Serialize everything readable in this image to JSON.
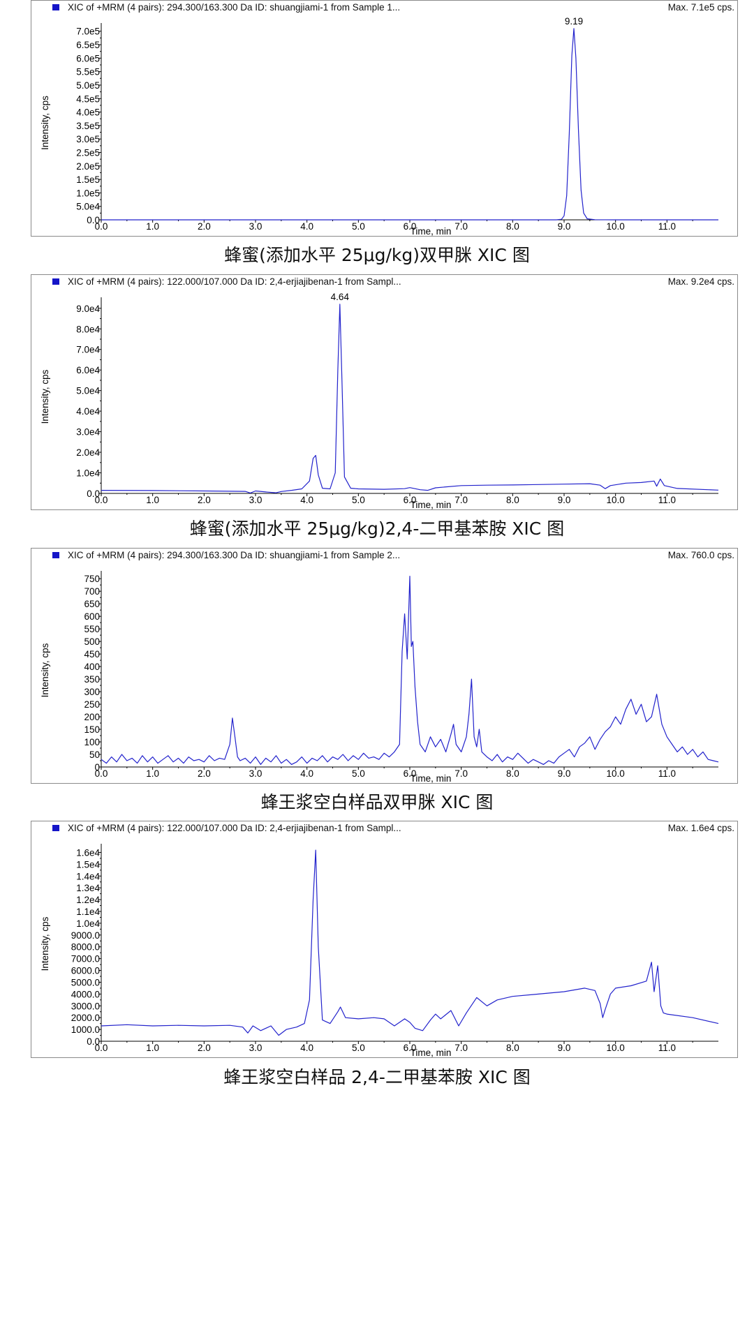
{
  "chart_data": [
    {
      "type": "line",
      "header": "XIC of +MRM (4 pairs): 294.300/163.300 Da ID: shuangjiami-1 from Sample 1...",
      "max_label": "Max. 7.1e5 cps.",
      "xlabel": "Time, min",
      "ylabel": "Intensity, cps",
      "caption": "蜂蜜(添加水平 25μg/kg)双甲脒 XIC 图",
      "xlim": [
        0.0,
        12.0
      ],
      "ylim": [
        0,
        720000
      ],
      "xticks": [
        0.0,
        1.0,
        2.0,
        3.0,
        4.0,
        5.0,
        6.0,
        7.0,
        8.0,
        9.0,
        10.0,
        11.0
      ],
      "xtick_labels": [
        "0.0",
        "1.0",
        "2.0",
        "3.0",
        "4.0",
        "5.0",
        "6.0",
        "7.0",
        "8.0",
        "9.0",
        "10.0",
        "11.0"
      ],
      "yticks": [
        0,
        50000,
        100000,
        150000,
        200000,
        250000,
        300000,
        350000,
        400000,
        450000,
        500000,
        550000,
        600000,
        650000,
        700000
      ],
      "ytick_labels": [
        "0.0",
        "5.0e4",
        "1.0e5",
        "1.5e5",
        "2.0e5",
        "2.5e5",
        "3.0e5",
        "3.5e5",
        "4.0e5",
        "4.5e5",
        "5.0e5",
        "5.5e5",
        "6.0e5",
        "6.5e5",
        "7.0e5"
      ],
      "series": [
        {
          "color": "#2222cc",
          "x": [
            0.0,
            8.85,
            8.95,
            9.0,
            9.05,
            9.1,
            9.15,
            9.19,
            9.23,
            9.28,
            9.33,
            9.38,
            9.45,
            9.6,
            10.0,
            12.0
          ],
          "y": [
            0,
            0,
            2000,
            15000,
            90000,
            320000,
            610000,
            710000,
            600000,
            330000,
            110000,
            25000,
            4000,
            500,
            0,
            0
          ]
        }
      ],
      "peak_labels": [
        {
          "x": 9.19,
          "y": 710000,
          "text": "9.19"
        }
      ]
    },
    {
      "type": "line",
      "header": "XIC of +MRM (4 pairs): 122.000/107.000 Da ID: 2,4-erjiajibenan-1 from Sampl...",
      "max_label": "Max. 9.2e4 cps.",
      "xlabel": "Time, min",
      "ylabel": "Intensity, cps",
      "caption": "蜂蜜(添加水平 25μg/kg)2,4-二甲基苯胺 XIC 图",
      "xlim": [
        0.0,
        12.0
      ],
      "ylim": [
        0,
        94000
      ],
      "xticks": [
        0.0,
        1.0,
        2.0,
        3.0,
        4.0,
        5.0,
        6.0,
        7.0,
        8.0,
        9.0,
        10.0,
        11.0
      ],
      "xtick_labels": [
        "0.0",
        "1.0",
        "2.0",
        "3.0",
        "4.0",
        "5.0",
        "6.0",
        "7.0",
        "8.0",
        "9.0",
        "10.0",
        "11.0"
      ],
      "yticks": [
        0,
        10000,
        20000,
        30000,
        40000,
        50000,
        60000,
        70000,
        80000,
        90000
      ],
      "ytick_labels": [
        "0.0",
        "1.0e4",
        "2.0e4",
        "3.0e4",
        "4.0e4",
        "5.0e4",
        "6.0e4",
        "7.0e4",
        "8.0e4",
        "9.0e4"
      ],
      "series": [
        {
          "color": "#2222cc",
          "x": [
            0.0,
            1.0,
            2.0,
            2.8,
            2.9,
            3.0,
            3.2,
            3.4,
            3.5,
            3.7,
            3.9,
            4.05,
            4.12,
            4.17,
            4.22,
            4.3,
            4.45,
            4.55,
            4.6,
            4.64,
            4.68,
            4.73,
            4.85,
            5.0,
            5.5,
            5.9,
            6.0,
            6.2,
            6.35,
            6.5,
            7.0,
            7.5,
            8.0,
            8.5,
            9.0,
            9.5,
            9.7,
            9.8,
            9.9,
            10.2,
            10.5,
            10.75,
            10.8,
            10.87,
            10.95,
            11.2,
            12.0
          ],
          "y": [
            1500,
            1400,
            1200,
            1000,
            200,
            1200,
            700,
            300,
            900,
            1500,
            2200,
            6000,
            17000,
            18500,
            9000,
            2500,
            2200,
            10000,
            60000,
            92000,
            55000,
            8000,
            2500,
            2200,
            2000,
            2300,
            2800,
            1800,
            1500,
            2700,
            3800,
            4000,
            4100,
            4300,
            4500,
            4700,
            4000,
            2300,
            3800,
            5000,
            5300,
            6000,
            3500,
            7000,
            3800,
            2400,
            1600
          ]
        }
      ],
      "peak_labels": [
        {
          "x": 4.64,
          "y": 92000,
          "text": "4.64"
        }
      ]
    },
    {
      "type": "line",
      "header": "XIC of +MRM (4 pairs): 294.300/163.300 Da ID: shuangjiami-1 from Sample 2...",
      "max_label": "Max. 760.0 cps.",
      "xlabel": "Time, min",
      "ylabel": "Intensity, cps",
      "caption": "蜂王浆空白样品双甲脒 XIC 图",
      "xlim": [
        0.0,
        12.0
      ],
      "ylim": [
        0,
        770
      ],
      "xticks": [
        0.0,
        1.0,
        2.0,
        3.0,
        4.0,
        5.0,
        6.0,
        7.0,
        8.0,
        9.0,
        10.0,
        11.0
      ],
      "xtick_labels": [
        "0.0",
        "1.0",
        "2.0",
        "3.0",
        "4.0",
        "5.0",
        "6.0",
        "7.0",
        "8.0",
        "9.0",
        "10.0",
        "11.0"
      ],
      "yticks": [
        0,
        50,
        100,
        150,
        200,
        250,
        300,
        350,
        400,
        450,
        500,
        550,
        600,
        650,
        700,
        750
      ],
      "ytick_labels": [
        "0",
        "50",
        "100",
        "150",
        "200",
        "250",
        "300",
        "350",
        "400",
        "450",
        "500",
        "550",
        "600",
        "650",
        "700",
        "750"
      ],
      "series": [
        {
          "color": "#2222cc",
          "x": [
            0.0,
            0.1,
            0.2,
            0.3,
            0.4,
            0.5,
            0.6,
            0.7,
            0.8,
            0.9,
            1.0,
            1.1,
            1.2,
            1.3,
            1.4,
            1.5,
            1.6,
            1.7,
            1.8,
            1.9,
            2.0,
            2.1,
            2.2,
            2.3,
            2.4,
            2.5,
            2.55,
            2.6,
            2.65,
            2.7,
            2.8,
            2.9,
            3.0,
            3.1,
            3.2,
            3.3,
            3.4,
            3.5,
            3.6,
            3.7,
            3.8,
            3.9,
            4.0,
            4.1,
            4.2,
            4.3,
            4.4,
            4.5,
            4.6,
            4.7,
            4.8,
            4.9,
            5.0,
            5.1,
            5.2,
            5.3,
            5.4,
            5.5,
            5.6,
            5.7,
            5.8,
            5.85,
            5.9,
            5.95,
            6.0,
            6.03,
            6.06,
            6.1,
            6.15,
            6.2,
            6.3,
            6.4,
            6.5,
            6.6,
            6.7,
            6.8,
            6.85,
            6.9,
            7.0,
            7.1,
            7.15,
            7.2,
            7.25,
            7.3,
            7.35,
            7.4,
            7.5,
            7.6,
            7.7,
            7.8,
            7.9,
            8.0,
            8.1,
            8.2,
            8.3,
            8.4,
            8.5,
            8.6,
            8.7,
            8.8,
            8.9,
            9.0,
            9.1,
            9.2,
            9.3,
            9.4,
            9.5,
            9.6,
            9.7,
            9.8,
            9.9,
            10.0,
            10.1,
            10.2,
            10.3,
            10.4,
            10.5,
            10.6,
            10.7,
            10.8,
            10.9,
            11.0,
            11.1,
            11.2,
            11.3,
            11.4,
            11.5,
            11.6,
            11.7,
            11.8,
            11.9,
            12.0
          ],
          "y": [
            30,
            15,
            40,
            20,
            50,
            25,
            35,
            15,
            45,
            20,
            40,
            15,
            30,
            45,
            20,
            35,
            15,
            40,
            25,
            30,
            20,
            45,
            25,
            35,
            30,
            90,
            195,
            120,
            40,
            25,
            35,
            15,
            40,
            10,
            35,
            20,
            45,
            15,
            30,
            10,
            20,
            40,
            15,
            35,
            25,
            45,
            20,
            40,
            30,
            50,
            25,
            45,
            30,
            55,
            35,
            40,
            30,
            55,
            40,
            60,
            90,
            460,
            610,
            430,
            760,
            480,
            500,
            320,
            180,
            90,
            60,
            120,
            80,
            110,
            60,
            130,
            170,
            90,
            60,
            120,
            210,
            350,
            120,
            80,
            150,
            60,
            40,
            25,
            50,
            20,
            40,
            30,
            55,
            35,
            15,
            30,
            20,
            10,
            25,
            15,
            40,
            55,
            70,
            40,
            80,
            95,
            120,
            70,
            110,
            140,
            160,
            200,
            170,
            230,
            270,
            210,
            250,
            180,
            200,
            290,
            170,
            120,
            90,
            60,
            80,
            50,
            70,
            40,
            60,
            30,
            25,
            20
          ]
        }
      ],
      "peak_labels": []
    },
    {
      "type": "line",
      "header": "XIC of +MRM (4 pairs): 122.000/107.000 Da ID: 2,4-erjiajibenan-1 from Sampl...",
      "max_label": "Max. 1.6e4 cps.",
      "xlabel": "Time, min",
      "ylabel": "Intensity, cps",
      "caption": "蜂王浆空白样品 2,4-二甲基苯胺 XIC 图",
      "xlim": [
        0.0,
        12.0
      ],
      "ylim": [
        0,
        16500
      ],
      "xticks": [
        0.0,
        1.0,
        2.0,
        3.0,
        4.0,
        5.0,
        6.0,
        7.0,
        8.0,
        9.0,
        10.0,
        11.0
      ],
      "xtick_labels": [
        "0.0",
        "1.0",
        "2.0",
        "3.0",
        "4.0",
        "5.0",
        "6.0",
        "7.0",
        "8.0",
        "9.0",
        "10.0",
        "11.0"
      ],
      "yticks": [
        0,
        1000,
        2000,
        3000,
        4000,
        5000,
        6000,
        7000,
        8000,
        9000,
        10000,
        11000,
        12000,
        13000,
        14000,
        15000,
        16000
      ],
      "ytick_labels": [
        "0.0",
        "1000.0",
        "2000.0",
        "3000.0",
        "4000.0",
        "5000.0",
        "6000.0",
        "7000.0",
        "8000.0",
        "9000.0",
        "1.0e4",
        "1.1e4",
        "1.2e4",
        "1.3e4",
        "1.4e4",
        "1.5e4",
        "1.6e4"
      ],
      "series": [
        {
          "color": "#2222cc",
          "x": [
            0.0,
            0.5,
            1.0,
            1.5,
            2.0,
            2.5,
            2.75,
            2.85,
            2.95,
            3.1,
            3.3,
            3.45,
            3.6,
            3.8,
            3.95,
            4.05,
            4.12,
            4.17,
            4.22,
            4.3,
            4.45,
            4.6,
            4.65,
            4.75,
            5.0,
            5.3,
            5.5,
            5.7,
            5.9,
            6.0,
            6.1,
            6.25,
            6.4,
            6.5,
            6.6,
            6.8,
            6.95,
            7.1,
            7.3,
            7.5,
            7.7,
            8.0,
            8.5,
            9.0,
            9.4,
            9.6,
            9.7,
            9.75,
            9.8,
            9.9,
            10.0,
            10.3,
            10.6,
            10.7,
            10.75,
            10.82,
            10.88,
            10.93,
            11.0,
            11.5,
            12.0
          ],
          "y": [
            1300,
            1400,
            1300,
            1350,
            1300,
            1350,
            1200,
            700,
            1300,
            900,
            1300,
            500,
            1000,
            1200,
            1500,
            3500,
            12000,
            16200,
            8000,
            1800,
            1500,
            2500,
            2900,
            2000,
            1900,
            2000,
            1900,
            1300,
            1900,
            1600,
            1100,
            900,
            1800,
            2300,
            1900,
            2600,
            1300,
            2400,
            3700,
            3000,
            3500,
            3800,
            4000,
            4200,
            4500,
            4300,
            3200,
            2000,
            2700,
            4000,
            4500,
            4700,
            5100,
            6700,
            4200,
            6400,
            3000,
            2400,
            2300,
            2000,
            1500
          ]
        }
      ],
      "peak_labels": []
    }
  ]
}
